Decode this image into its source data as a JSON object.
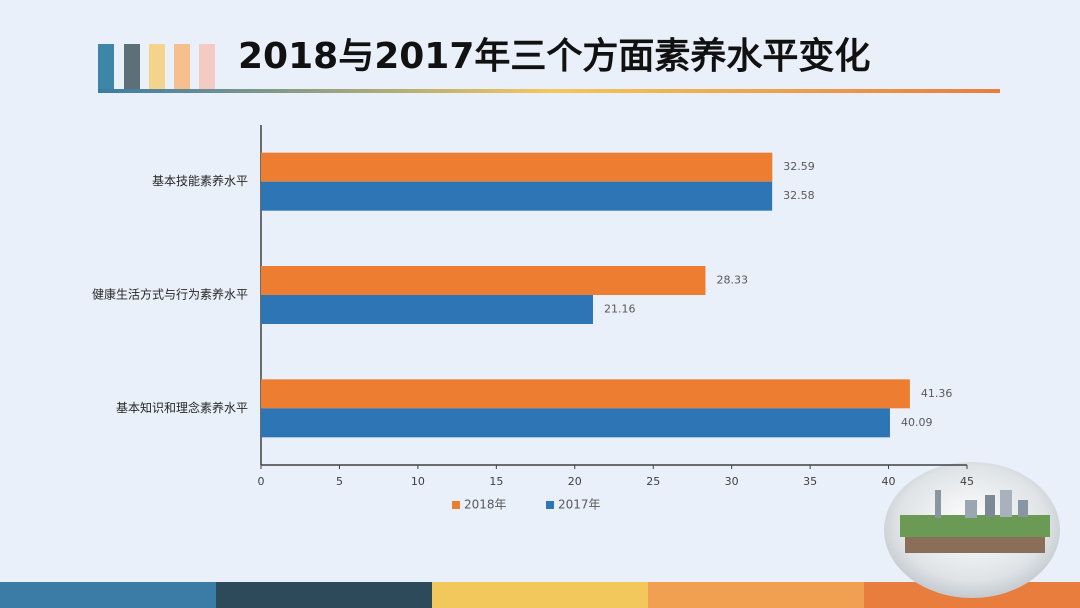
{
  "chart_data": {
    "type": "hbar",
    "title": "2018与2017年三个方面素养水平变化",
    "categories": [
      "基本技能素养水平",
      "健康生活方式与行为素养水平",
      "基本知识和理念素养水平"
    ],
    "series": [
      {
        "name": "2018年",
        "color": "#ed7d31",
        "values": [
          32.59,
          28.33,
          41.36
        ]
      },
      {
        "name": "2017年",
        "color": "#2e75b6",
        "values": [
          32.58,
          21.16,
          40.09
        ]
      }
    ],
    "xlim": [
      0,
      45
    ],
    "xticks": [
      0,
      5,
      10,
      15,
      20,
      25,
      30,
      35,
      40,
      45
    ],
    "legend": "bottom"
  }
}
